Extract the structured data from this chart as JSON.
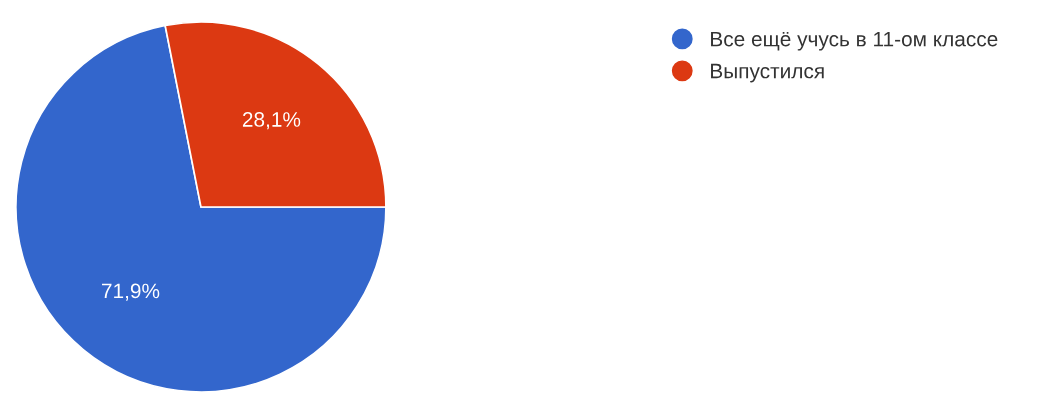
{
  "chart_data": {
    "type": "pie",
    "categories": [
      "Все ещё учусь в 11-ом классе",
      "Выпустился"
    ],
    "values": [
      71.9,
      28.1
    ],
    "colors": [
      "#3366cc",
      "#dc3912"
    ],
    "value_labels": [
      "71,9%",
      "28,1%"
    ],
    "legend": "top right"
  }
}
